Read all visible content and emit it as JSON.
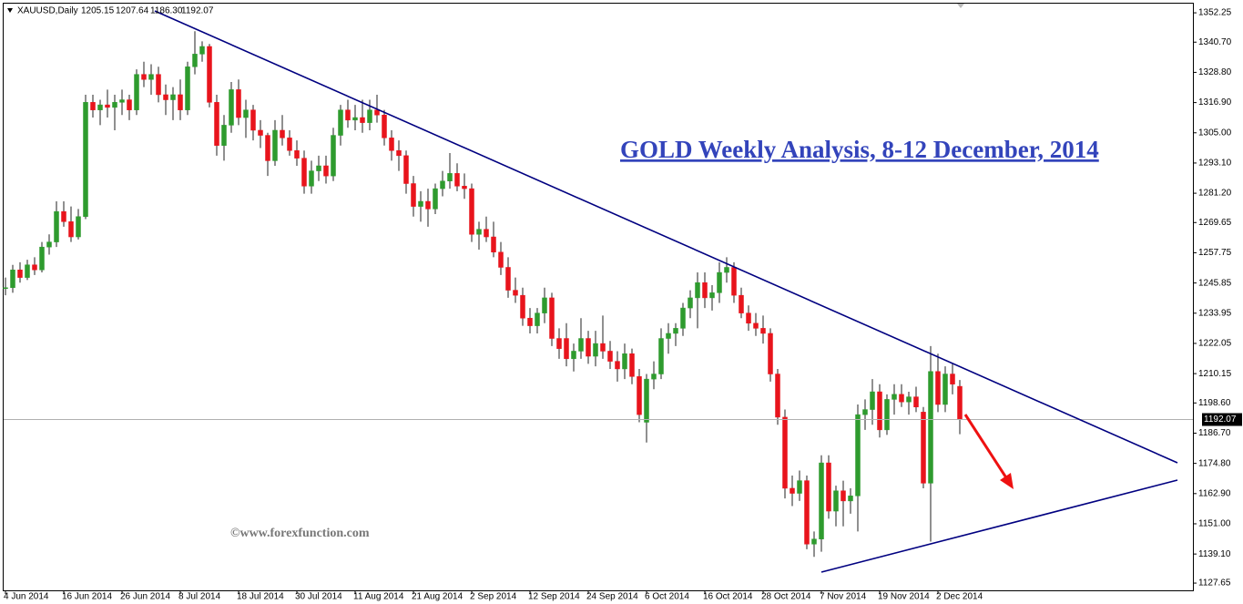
{
  "chart_data": {
    "type": "candlestick",
    "symbol": "XAUUSD,Daily",
    "last_bar_labels": [
      "1205.15",
      "1207.64",
      "1186.30",
      "1192.07"
    ],
    "title": "GOLD Weekly Analysis, 8-12 December, 2014",
    "annotation": "©www.forexfunction.com",
    "up_color": "#2e9b2e",
    "down_color": "#e8141c",
    "wick_color": "#222222",
    "ylim": [
      1124.8,
      1357.3
    ],
    "yticks": [
      1352.25,
      {
        "value": 1340.7,
        "label": "1340.70"
      },
      {
        "value": 1328.8,
        "label": "1328.80"
      },
      {
        "value": 1316.9,
        "label": "1316.90"
      },
      {
        "value": 1305,
        "label": "1305.00"
      },
      {
        "value": 1293.1,
        "label": "1293.10"
      },
      {
        "value": 1281.2,
        "label": "1281.20"
      },
      1269.65,
      1257.75,
      1245.85,
      1233.95,
      1222.05,
      1210.15,
      {
        "value": 1198.6,
        "label": "1198.60"
      },
      {
        "value": 1186.7,
        "label": "1186.70"
      },
      {
        "value": 1174.8,
        "label": "1174.80"
      },
      {
        "value": 1162.9,
        "label": "1162.90"
      },
      {
        "value": 1151,
        "label": "1151.00"
      },
      {
        "value": 1139.1,
        "label": "1139.10"
      },
      1127.65
    ],
    "categories": [
      "4 Jun 2014",
      null,
      null,
      null,
      null,
      null,
      null,
      null,
      "16 Jun 2014",
      null,
      null,
      null,
      null,
      null,
      null,
      null,
      "26 Jun 2014",
      null,
      null,
      null,
      null,
      null,
      null,
      null,
      "8 Jul 2014",
      null,
      null,
      null,
      null,
      null,
      null,
      null,
      "18 Jul 2014",
      null,
      null,
      null,
      null,
      null,
      null,
      null,
      "30 Jul 2014",
      null,
      null,
      null,
      null,
      null,
      null,
      null,
      "11 Aug 2014",
      null,
      null,
      null,
      null,
      null,
      null,
      null,
      "21 Aug 2014",
      null,
      null,
      null,
      null,
      null,
      null,
      null,
      "2 Sep 2014",
      null,
      null,
      null,
      null,
      null,
      null,
      null,
      "12 Sep 2014",
      null,
      null,
      null,
      null,
      null,
      null,
      null,
      "24 Sep 2014",
      null,
      null,
      null,
      null,
      null,
      null,
      null,
      "6 Oct 2014",
      null,
      null,
      null,
      null,
      null,
      null,
      null,
      "16 Oct 2014",
      null,
      null,
      null,
      null,
      null,
      null,
      null,
      "28 Oct 2014",
      null,
      null,
      null,
      null,
      null,
      null,
      null,
      "7 Nov 2014",
      null,
      null,
      null,
      null,
      null,
      null,
      null,
      "19 Nov 2014",
      null,
      null,
      null,
      null,
      null,
      null,
      null,
      "2 Dec 2014",
      null,
      null,
      null
    ],
    "open": [
      1244,
      1244,
      1251,
      1248,
      1253,
      1251,
      1260,
      1262,
      1274,
      1270,
      1264,
      1272,
      1317,
      1314,
      1316,
      1315,
      1317,
      1318,
      1314,
      1328,
      1326,
      1328,
      1320,
      1318,
      1320,
      1314,
      1331,
      1336,
      1339,
      1317,
      1300,
      1308,
      1322,
      1311,
      1314,
      1306,
      1304,
      1294,
      1306,
      1303,
      1298,
      1295,
      1284,
      1290,
      1292,
      1288,
      1304,
      1314,
      1310,
      1311,
      1309,
      1314,
      1312,
      1303,
      1298,
      1296,
      1285,
      1276,
      1278,
      1275,
      1283,
      1286,
      1289,
      1284,
      1283,
      1265,
      1267,
      1264,
      1258,
      1252,
      1243,
      1241,
      1232,
      1229,
      1234,
      1240,
      1224,
      1224,
      1216,
      1219,
      1224,
      1217,
      1222,
      1219,
      1215,
      1212,
      1218,
      1209,
      1191,
      1208,
      1210,
      1224,
      1226,
      1228,
      1236,
      1240,
      1246,
      1240,
      1242,
      1250,
      1252,
      1241,
      1234,
      1230,
      1228,
      1226,
      1210,
      1193,
      1165,
      1163,
      1168,
      1143,
      1145,
      1175,
      1156,
      1164,
      1160,
      1162,
      1194,
      1196,
      1203,
      1188,
      1200,
      1202,
      1199,
      1201,
      1195,
      1167,
      1211,
      1198,
      1210,
      1205.15
    ],
    "high": [
      1248,
      1253,
      1254,
      1255,
      1256,
      1262,
      1265,
      1278,
      1278,
      1276,
      1275,
      1320,
      1320,
      1318,
      1322,
      1320,
      1322,
      1320,
      1330,
      1333,
      1332,
      1331,
      1324,
      1323,
      1326,
      1333,
      1345,
      1341,
      1340,
      1320,
      1312,
      1325,
      1326,
      1318,
      1316,
      1310,
      1305,
      1310,
      1312,
      1306,
      1302,
      1298,
      1294,
      1296,
      1296,
      1307,
      1316,
      1318,
      1316,
      1318,
      1318,
      1320,
      1314,
      1306,
      1302,
      1298,
      1288,
      1282,
      1283,
      1285,
      1290,
      1297,
      1293,
      1289,
      1285,
      1270,
      1272,
      1270,
      1262,
      1256,
      1248,
      1244,
      1236,
      1236,
      1244,
      1242,
      1228,
      1230,
      1222,
      1232,
      1227,
      1227,
      1233,
      1223,
      1219,
      1222,
      1220,
      1212,
      1210,
      1215,
      1228,
      1230,
      1230,
      1238,
      1243,
      1250,
      1250,
      1245,
      1254,
      1256,
      1254,
      1244,
      1237,
      1234,
      1233,
      1228,
      1212,
      1196,
      1170,
      1172,
      1170,
      1148,
      1178,
      1178,
      1166,
      1168,
      1165,
      1198,
      1200,
      1208,
      1206,
      1202,
      1206,
      1206,
      1203,
      1205,
      1197,
      1221,
      1218,
      1213,
      1214,
      1207.64
    ],
    "low": [
      1241,
      1242,
      1246,
      1247,
      1249,
      1250,
      1257,
      1260,
      1268,
      1262,
      1263,
      1271,
      1311,
      1308,
      1311,
      1306,
      1312,
      1310,
      1312,
      1323,
      1320,
      1317,
      1312,
      1310,
      1310,
      1312,
      1328,
      1333,
      1315,
      1296,
      1294,
      1305,
      1308,
      1303,
      1302,
      1299,
      1288,
      1292,
      1300,
      1296,
      1292,
      1281,
      1281,
      1286,
      1285,
      1286,
      1300,
      1307,
      1306,
      1305,
      1306,
      1309,
      1300,
      1294,
      1290,
      1281,
      1272,
      1270,
      1268,
      1273,
      1280,
      1283,
      1282,
      1279,
      1262,
      1259,
      1262,
      1256,
      1249,
      1240,
      1238,
      1229,
      1226,
      1226,
      1230,
      1221,
      1216,
      1213,
      1211,
      1216,
      1214,
      1213,
      1216,
      1212,
      1207,
      1208,
      1206,
      1191,
      1183,
      1204,
      1208,
      1218,
      1221,
      1225,
      1232,
      1228,
      1236,
      1235,
      1238,
      1246,
      1238,
      1232,
      1227,
      1225,
      1222,
      1207,
      1190,
      1161,
      1158,
      1160,
      1141,
      1138,
      1140,
      1153,
      1150,
      1150,
      1155,
      1148,
      1188,
      1190,
      1185,
      1186,
      1194,
      1197,
      1194,
      1195,
      1165,
      1144,
      1195,
      1195,
      1202,
      1186.3
    ],
    "close": [
      1244,
      1251,
      1248,
      1253,
      1251,
      1260,
      1262,
      1274,
      1270,
      1264,
      1272,
      1317,
      1314,
      1316,
      1315,
      1317,
      1318,
      1314,
      1328,
      1326,
      1328,
      1320,
      1318,
      1320,
      1314,
      1331,
      1336,
      1339,
      1317,
      1300,
      1308,
      1322,
      1311,
      1314,
      1306,
      1304,
      1294,
      1306,
      1303,
      1298,
      1295,
      1284,
      1290,
      1292,
      1288,
      1304,
      1314,
      1310,
      1311,
      1309,
      1314,
      1312,
      1303,
      1298,
      1296,
      1285,
      1276,
      1278,
      1275,
      1283,
      1286,
      1289,
      1284,
      1283,
      1265,
      1267,
      1264,
      1258,
      1252,
      1243,
      1241,
      1232,
      1229,
      1234,
      1240,
      1224,
      1220,
      1216,
      1219,
      1224,
      1217,
      1222,
      1219,
      1215,
      1212,
      1218,
      1209,
      1194,
      1208,
      1210,
      1224,
      1226,
      1228,
      1236,
      1240,
      1246,
      1240,
      1242,
      1250,
      1252,
      1241,
      1234,
      1230,
      1228,
      1226,
      1210,
      1193,
      1165,
      1163,
      1168,
      1143,
      1145,
      1175,
      1156,
      1164,
      1160,
      1162,
      1194,
      1196,
      1203,
      1188,
      1200,
      1202,
      1199,
      1201,
      1197,
      1167,
      1211,
      1198,
      1210,
      1206,
      1192.07
    ]
  }
}
